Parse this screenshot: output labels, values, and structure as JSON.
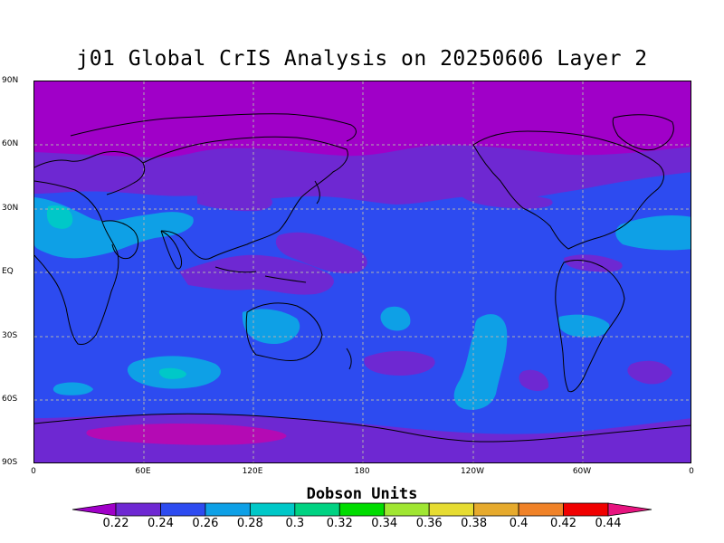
{
  "title": "j01 Global CrIS Analysis on 20250606 Layer 2",
  "lat_labels": [
    "90N",
    "60N",
    "30N",
    "EQ",
    "30S",
    "60S",
    "90S"
  ],
  "lon_labels": [
    "0",
    "60E",
    "120E",
    "180",
    "120W",
    "60W",
    "0"
  ],
  "colorbar": {
    "title": "Dobson Units",
    "ticks": [
      "0.22",
      "0.24",
      "0.26",
      "0.28",
      "0.3",
      "0.32",
      "0.34",
      "0.36",
      "0.38",
      "0.4",
      "0.42",
      "0.44"
    ],
    "colors": [
      "#a000c8",
      "#6e28d2",
      "#2d4bf0",
      "#0ea0e6",
      "#00c8c8",
      "#00d282",
      "#00dc00",
      "#a0e632",
      "#e6dc32",
      "#e6aa2d",
      "#f08228",
      "#f00000",
      "#e6147f"
    ]
  },
  "field_levels": {
    "polar_north": "#a000c8",
    "band": "#6e28d2",
    "background": "#2d4bf0",
    "enhanced": "#0ea0e6",
    "peak": "#00c8c8",
    "antarctic_low": "#b40ab4"
  }
}
